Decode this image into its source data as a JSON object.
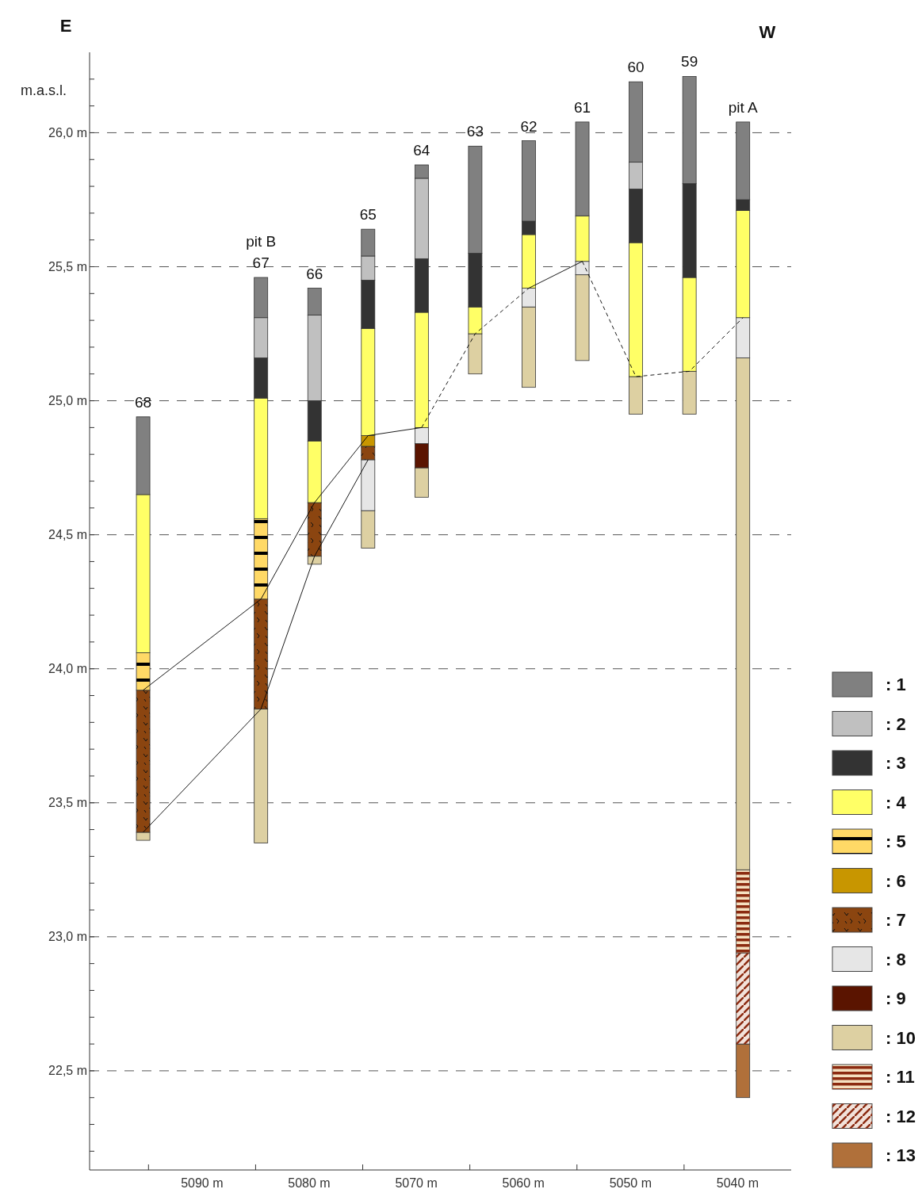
{
  "chart_data": {
    "type": "bar",
    "ylabel": "m.a.s.l.",
    "x": [
      5095.5,
      5084.5,
      5079.5,
      5074.5,
      5069.5,
      5064.5,
      5059.5,
      5054.5,
      5049.5,
      5044.5,
      5039.5
    ],
    "series": [
      {
        "name": ": 13",
        "color": "#b0703a",
        "base": [
          null,
          null,
          null,
          null,
          null,
          null,
          null,
          null,
          null,
          null,
          22.4
        ],
        "values": [
          null,
          null,
          null,
          null,
          null,
          null,
          null,
          null,
          null,
          null,
          0.2
        ]
      },
      {
        "name": ": 12",
        "color": "#f2e2da",
        "base": [
          null,
          null,
          null,
          null,
          null,
          null,
          null,
          null,
          null,
          null,
          22.6
        ],
        "values": [
          null,
          null,
          null,
          null,
          null,
          null,
          null,
          null,
          null,
          null,
          0.34
        ]
      },
      {
        "name": ": 11",
        "color": "#f5e0c0",
        "base": [
          null,
          null,
          null,
          null,
          null,
          null,
          null,
          null,
          null,
          null,
          22.94
        ],
        "values": [
          null,
          null,
          null,
          null,
          null,
          null,
          null,
          null,
          null,
          null,
          0.31
        ]
      },
      {
        "name": ": 10",
        "color": "#ddd0a2",
        "base": [
          23.36,
          23.35,
          24.39,
          24.45,
          24.64,
          25.1,
          25.05,
          25.15,
          24.95,
          24.95,
          23.25
        ],
        "values": [
          0.03,
          0.5,
          0.03,
          0.14,
          0.11,
          0.15,
          0.3,
          0.32,
          0.14,
          0.16,
          1.91
        ]
      },
      {
        "name": ": 9",
        "color": "#5a1400",
        "base": [
          null,
          null,
          null,
          null,
          24.75,
          null,
          null,
          null,
          null,
          null,
          null
        ],
        "values": [
          null,
          null,
          null,
          null,
          0.09,
          null,
          null,
          null,
          null,
          null,
          null
        ]
      },
      {
        "name": ": 8",
        "color": "#e6e6e6",
        "base": [
          null,
          null,
          null,
          24.59,
          24.84,
          null,
          25.35,
          25.47,
          null,
          null,
          25.16
        ],
        "values": [
          null,
          null,
          null,
          0.19,
          0.06,
          null,
          0.07,
          0.05,
          null,
          null,
          0.15
        ]
      },
      {
        "name": ": 7",
        "color": "#8b4510",
        "base": [
          23.39,
          23.85,
          24.42,
          24.78,
          null,
          null,
          null,
          null,
          null,
          null,
          null
        ],
        "values": [
          0.53,
          0.41,
          0.2,
          0.05,
          null,
          null,
          null,
          null,
          null,
          null,
          null
        ]
      },
      {
        "name": ": 6",
        "color": "#c89600",
        "base": [
          null,
          null,
          null,
          24.83,
          null,
          null,
          null,
          null,
          null,
          null,
          null
        ],
        "values": [
          null,
          null,
          null,
          0.04,
          null,
          null,
          null,
          null,
          null,
          null,
          null
        ]
      },
      {
        "name": ": 5",
        "color": "#ffd966",
        "base": [
          23.92,
          24.26,
          null,
          null,
          null,
          null,
          null,
          null,
          null,
          null,
          null
        ],
        "values": [
          0.14,
          0.3,
          null,
          null,
          null,
          null,
          null,
          null,
          null,
          null,
          null
        ]
      },
      {
        "name": ": 4",
        "color": "#ffff66",
        "base": [
          24.06,
          24.56,
          24.62,
          24.87,
          24.9,
          25.25,
          25.42,
          25.52,
          25.09,
          25.11,
          25.31
        ],
        "values": [
          0.59,
          0.45,
          0.23,
          0.4,
          0.43,
          0.1,
          0.2,
          0.17,
          0.5,
          0.35,
          0.4
        ]
      },
      {
        "name": ": 3",
        "color": "#333333",
        "base": [
          null,
          25.01,
          24.85,
          25.27,
          25.33,
          25.35,
          25.62,
          null,
          25.59,
          25.46,
          25.71
        ],
        "values": [
          null,
          0.15,
          0.15,
          0.18,
          0.2,
          0.2,
          0.05,
          null,
          0.2,
          0.35,
          0.04
        ]
      },
      {
        "name": ": 2",
        "color": "#c0c0c0",
        "base": [
          null,
          25.16,
          25,
          25.45,
          25.53,
          null,
          null,
          null,
          25.79,
          null,
          null
        ],
        "values": [
          null,
          0.15,
          0.32,
          0.09,
          0.3,
          null,
          null,
          null,
          0.1,
          null,
          null
        ]
      },
      {
        "name": ": 1",
        "color": "#808080",
        "base": [
          24.65,
          25.31,
          25.32,
          25.54,
          25.83,
          25.55,
          25.67,
          25.69,
          25.89,
          25.81,
          25.75
        ],
        "values": [
          0.29,
          0.15,
          0.1,
          0.1,
          0.05,
          0.4,
          0.3,
          0.35,
          0.3,
          0.4,
          0.29
        ]
      },
      {
        "type": "line",
        "color": "#000000",
        "line_style": "solid",
        "x": [
          5095.5,
          5084.5,
          5079.5,
          5074.5,
          5069.5
        ],
        "values": [
          23.92,
          24.26,
          24.62,
          24.87,
          24.9
        ]
      },
      {
        "type": "line",
        "color": "#000000",
        "line_style": "solid",
        "x": [
          5095.5,
          5084.5,
          5079.5,
          5074.5
        ],
        "values": [
          23.39,
          23.85,
          24.42,
          24.78
        ]
      },
      {
        "type": "line",
        "color": "#000000",
        "line_style": "dashed",
        "x": [
          5069.5,
          5064.5,
          5059.5
        ],
        "values": [
          24.9,
          25.25,
          25.42
        ]
      },
      {
        "type": "line",
        "color": "#000000",
        "line_style": "solid",
        "x": [
          5059.5,
          5054.5
        ],
        "values": [
          25.42,
          25.52
        ]
      },
      {
        "type": "line",
        "color": "#000000",
        "line_style": "dashed",
        "x": [
          5054.5,
          5049.5,
          5044.5,
          5039.5
        ],
        "values": [
          25.52,
          25.09,
          25.11,
          25.31
        ]
      }
    ],
    "xlim": [
      5100.5,
      5035
    ],
    "xticks": [
      {
        "value": 5095,
        "label": null
      },
      {
        "value": 5090,
        "label": "5090 m"
      },
      {
        "value": 5085,
        "label": null
      },
      {
        "value": 5080,
        "label": "5080 m"
      },
      {
        "value": 5075,
        "label": null
      },
      {
        "value": 5070,
        "label": "5070 m"
      },
      {
        "value": 5065,
        "label": null
      },
      {
        "value": 5060,
        "label": "5060 m"
      },
      {
        "value": 5055,
        "label": null
      },
      {
        "value": 5050,
        "label": "5050 m"
      },
      {
        "value": 5045,
        "label": null
      },
      {
        "value": 5040,
        "label": "5040 m"
      }
    ],
    "ylim": [
      22.13,
      26.3
    ],
    "yticks": [
      {
        "value": 22.2,
        "label": null
      },
      {
        "value": 22.3,
        "label": null
      },
      {
        "value": 22.4,
        "label": null
      },
      {
        "value": 22.5,
        "label": "22,5 m"
      },
      {
        "value": 22.6,
        "label": null
      },
      {
        "value": 22.7,
        "label": null
      },
      {
        "value": 22.8,
        "label": null
      },
      {
        "value": 22.9,
        "label": null
      },
      {
        "value": 23,
        "label": "23,0 m"
      },
      {
        "value": 23.1,
        "label": null
      },
      {
        "value": 23.2,
        "label": null
      },
      {
        "value": 23.3,
        "label": null
      },
      {
        "value": 23.4,
        "label": null
      },
      {
        "value": 23.5,
        "label": "23,5 m"
      },
      {
        "value": 23.6,
        "label": null
      },
      {
        "value": 23.7,
        "label": null
      },
      {
        "value": 23.8,
        "label": null
      },
      {
        "value": 23.9,
        "label": null
      },
      {
        "value": 24,
        "label": "24,0 m"
      },
      {
        "value": 24.1,
        "label": null
      },
      {
        "value": 24.2,
        "label": null
      },
      {
        "value": 24.3,
        "label": null
      },
      {
        "value": 24.4,
        "label": null
      },
      {
        "value": 24.5,
        "label": "24,5 m"
      },
      {
        "value": 24.6,
        "label": null
      },
      {
        "value": 24.7,
        "label": null
      },
      {
        "value": 24.8,
        "label": null
      },
      {
        "value": 24.9,
        "label": null
      },
      {
        "value": 25,
        "label": "25,0 m"
      },
      {
        "value": 25.1,
        "label": null
      },
      {
        "value": 25.2,
        "label": null
      },
      {
        "value": 25.3,
        "label": null
      },
      {
        "value": 25.4,
        "label": null
      },
      {
        "value": 25.5,
        "label": "25,5 m"
      },
      {
        "value": 25.6,
        "label": null
      },
      {
        "value": 25.7,
        "label": null
      },
      {
        "value": 25.8,
        "label": null
      },
      {
        "value": 25.9,
        "label": null
      },
      {
        "value": 26,
        "label": "26,0 m"
      },
      {
        "value": 26.1,
        "label": null
      },
      {
        "value": 26.2,
        "label": null
      }
    ],
    "grid": "y",
    "legend": "right",
    "annotations": [
      "E",
      "W",
      {
        "text": "68",
        "x": 5095.5,
        "y": 24.94
      },
      {
        "text": "pit B",
        "x": 5084.5,
        "y": 25.46
      },
      {
        "text": "67",
        "x": 5084.5,
        "y": 25.46
      },
      {
        "text": "66",
        "x": 5079.5,
        "y": 25.42
      },
      {
        "text": "65",
        "x": 5074.5,
        "y": 25.64
      },
      {
        "text": "64",
        "x": 5069.5,
        "y": 25.88
      },
      {
        "text": "63",
        "x": 5064.5,
        "y": 25.95
      },
      {
        "text": "62",
        "x": 5059.5,
        "y": 25.97
      },
      {
        "text": "61",
        "x": 5054.5,
        "y": 26.04
      },
      {
        "text": "60",
        "x": 5049.5,
        "y": 26.19
      },
      {
        "text": "59",
        "x": 5044.5,
        "y": 26.21
      },
      {
        "text": "pit A",
        "x": 5039.5,
        "y": 26.04
      }
    ]
  }
}
